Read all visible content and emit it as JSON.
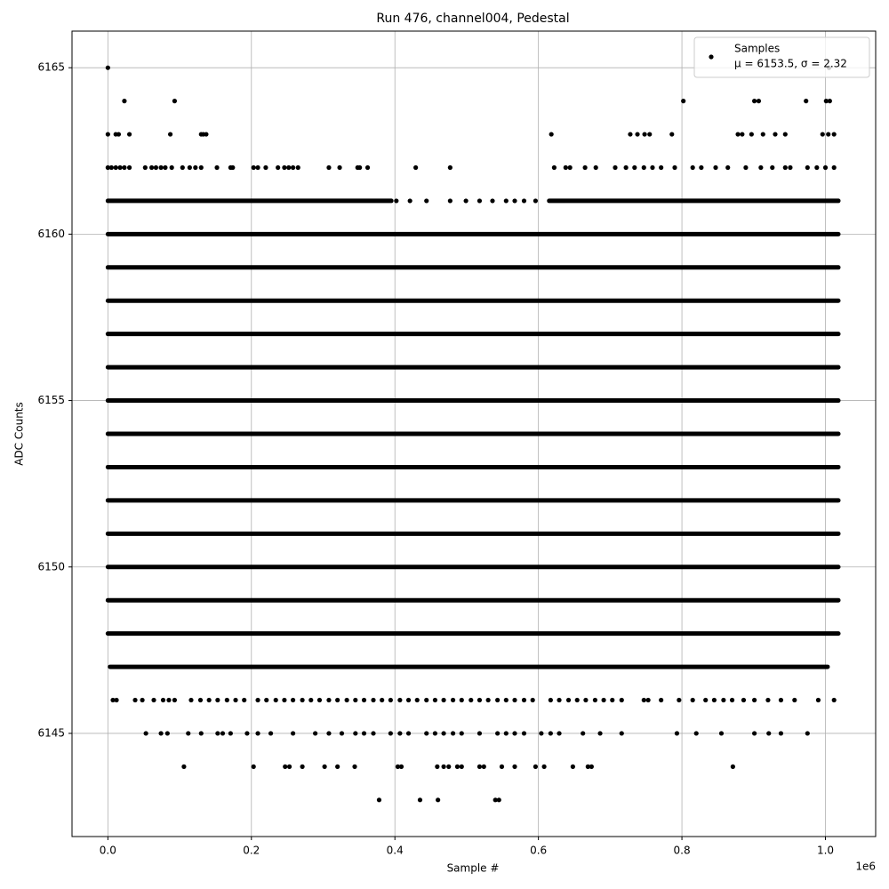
{
  "chart_data": {
    "type": "scatter",
    "title": "Run 476, channel004, Pedestal",
    "xlabel": "Sample #",
    "ylabel": "ADC Counts",
    "x_offset_label": "1e6",
    "xlim": [
      -50000,
      1070000
    ],
    "ylim": [
      6141.9,
      6166.1
    ],
    "xticks": [
      {
        "value": 0,
        "label": "0.0"
      },
      {
        "value": 200000,
        "label": "0.2"
      },
      {
        "value": 400000,
        "label": "0.4"
      },
      {
        "value": 600000,
        "label": "0.6"
      },
      {
        "value": 800000,
        "label": "0.8"
      },
      {
        "value": 1000000,
        "label": "1.0"
      }
    ],
    "yticks": [
      6145,
      6150,
      6155,
      6160,
      6165
    ],
    "grid": true,
    "color": "#000000",
    "legend_position": "upper right",
    "series_name": "Samples",
    "legend_note": "μ = 6153.5, σ = 2.32",
    "bands": [
      {
        "y": 6148,
        "x": [
          0,
          1018000
        ]
      },
      {
        "y": 6149,
        "x": [
          0,
          1018000
        ]
      },
      {
        "y": 6150,
        "x": [
          0,
          1018000
        ]
      },
      {
        "y": 6151,
        "x": [
          0,
          1018000
        ]
      },
      {
        "y": 6152,
        "x": [
          0,
          1018000
        ]
      },
      {
        "y": 6153,
        "x": [
          0,
          1018000
        ]
      },
      {
        "y": 6154,
        "x": [
          0,
          1018000
        ]
      },
      {
        "y": 6155,
        "x": [
          0,
          1018000
        ]
      },
      {
        "y": 6156,
        "x": [
          0,
          1018000
        ]
      },
      {
        "y": 6157,
        "x": [
          0,
          1018000
        ]
      },
      {
        "y": 6158,
        "x": [
          0,
          1018000
        ]
      },
      {
        "y": 6159,
        "x": [
          0,
          1018000
        ]
      },
      {
        "y": 6160,
        "x": [
          0,
          1018000
        ]
      },
      {
        "y": 6147,
        "x": [
          3000,
          1003000
        ]
      },
      {
        "y": 6161,
        "x": [
          0,
          395000
        ]
      },
      {
        "y": 6161,
        "x": [
          615000,
          1018000
        ]
      }
    ],
    "points": [
      {
        "y": 6165,
        "x": [
          0,
          1005000
        ]
      },
      {
        "y": 6164,
        "x": [
          23000,
          93000,
          802000,
          901000,
          907000,
          973000,
          1001000,
          1006000
        ]
      },
      {
        "y": 6163,
        "x": [
          0,
          11000,
          15000,
          30000,
          87000,
          130000,
          133000,
          137000,
          618000,
          728000,
          738000,
          748000,
          755000,
          786000,
          878000,
          884000,
          897000,
          913000,
          930000,
          944000,
          996000,
          1004000,
          1012000
        ]
      },
      {
        "y": 6162,
        "x": [
          0,
          5000,
          11000,
          17000,
          23000,
          30000,
          52000,
          61000,
          67000,
          74000,
          80000,
          89000,
          104000,
          114000,
          122000,
          130000,
          152000,
          171000,
          174000,
          203000,
          209000,
          220000,
          237000,
          246000,
          252000,
          258000,
          265000,
          308000,
          323000,
          348000,
          351000,
          362000,
          429000,
          477000,
          622000,
          638000,
          644000,
          665000,
          680000,
          707000,
          722000,
          734000,
          747000,
          759000,
          771000,
          790000,
          815000,
          827000,
          847000,
          864000,
          889000,
          910000,
          926000,
          944000,
          951000,
          975000,
          988000,
          1000000,
          1012000
        ]
      },
      {
        "y": 6161,
        "x": [
          402000,
          421000,
          444000,
          477000,
          499000,
          518000,
          536000,
          555000,
          567000,
          580000,
          596000
        ]
      },
      {
        "y": 6146,
        "x": [
          7000,
          12000,
          38000,
          48000,
          64000,
          77000,
          85000,
          93000,
          116000,
          129000,
          141000,
          153000,
          166000,
          178000,
          190000,
          209000,
          221000,
          234000,
          246000,
          258000,
          271000,
          283000,
          295000,
          308000,
          320000,
          333000,
          345000,
          357000,
          370000,
          382000,
          394000,
          407000,
          419000,
          431000,
          444000,
          456000,
          468000,
          481000,
          493000,
          506000,
          518000,
          530000,
          543000,
          555000,
          567000,
          580000,
          592000,
          617000,
          629000,
          642000,
          654000,
          666000,
          679000,
          691000,
          703000,
          716000,
          747000,
          753000,
          771000,
          796000,
          815000,
          833000,
          845000,
          858000,
          870000,
          886000,
          901000,
          920000,
          938000,
          957000,
          990000,
          1012000
        ]
      },
      {
        "y": 6145,
        "x": [
          53000,
          74000,
          83000,
          112000,
          130000,
          153000,
          160000,
          171000,
          194000,
          209000,
          227000,
          258000,
          289000,
          308000,
          326000,
          345000,
          357000,
          370000,
          394000,
          407000,
          419000,
          444000,
          456000,
          468000,
          481000,
          493000,
          518000,
          543000,
          555000,
          567000,
          580000,
          604000,
          617000,
          629000,
          662000,
          686000,
          716000,
          793000,
          820000,
          855000,
          901000,
          921000,
          938000,
          975000
        ]
      },
      {
        "y": 6144,
        "x": [
          106000,
          203000,
          247000,
          253000,
          271000,
          302000,
          320000,
          344000,
          404000,
          409000,
          459000,
          468000,
          475000,
          487000,
          493000,
          518000,
          524000,
          549000,
          567000,
          596000,
          608000,
          648000,
          669000,
          674000,
          871000
        ]
      },
      {
        "y": 6143,
        "x": [
          378000,
          435000,
          460000,
          540000,
          545000
        ]
      }
    ]
  }
}
